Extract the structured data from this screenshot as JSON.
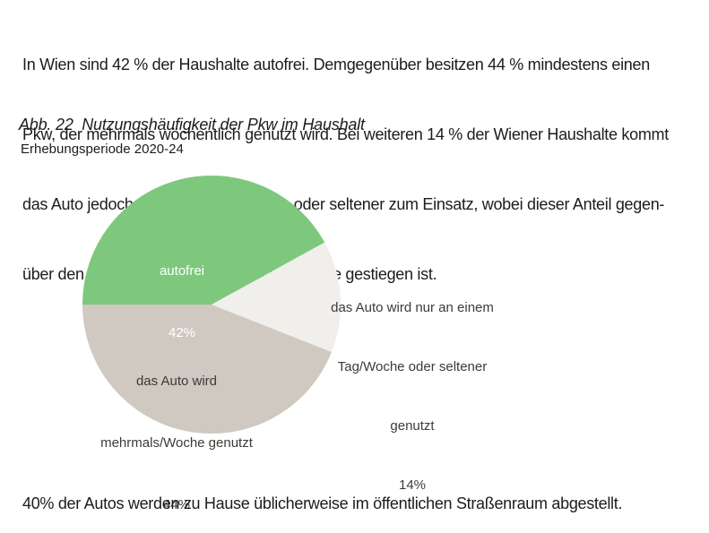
{
  "intro_paragraph": {
    "lines": [
      "In Wien sind 42 % der Haushalte autofrei. Demgegenüber besitzen 44 % mindestens einen",
      "Pkw, der mehrmals wöchentlich genutzt wird. Bei weiteren 14 % der Wiener Haushalte kommt",
      "das Auto jedoch nur einmal pro Woche oder seltener zum Einsatz, wobei dieser Anteil gegen-",
      "über den Jahren 2015-19 um 2 Prozentpunkte gestiegen ist."
    ]
  },
  "figure": {
    "caption": "Abb. 22  Nutzungshäufigkeit der Pkw im Haushalt",
    "subtitle": "Erhebungsperiode 2020-24"
  },
  "chart_data": {
    "type": "pie",
    "title": "Nutzungshäufigkeit der Pkw im Haushalt",
    "subtitle": "Erhebungsperiode 2020-24",
    "start_angle_deg": 180,
    "direction": "clockwise",
    "legend": "none",
    "slices": [
      {
        "label": "autofrei",
        "value_pct": 42,
        "color": "#7dc87d",
        "label_color": "#ffffff",
        "label_position": "inside",
        "label_lines": [
          "autofrei",
          "42%"
        ]
      },
      {
        "label": "das Auto wird nur an einem Tag/Woche oder seltener genutzt",
        "value_pct": 14,
        "color": "#f0efec",
        "label_color": "#3b3b39",
        "label_position": "outside-right",
        "label_lines": [
          "das Auto wird nur an einem",
          "Tag/Woche oder seltener",
          "genutzt",
          "14%"
        ]
      },
      {
        "label": "das Auto wird mehrmals/Woche genutzt",
        "value_pct": 44,
        "color": "#cfc9c2",
        "label_color": "#3b3b39",
        "label_position": "inside",
        "label_lines": [
          "das Auto wird",
          "mehrmals/Woche genutzt",
          "44%"
        ]
      }
    ]
  },
  "footer_text": "40% der Autos werden zu Hause üblicherweise im öffentlichen Straßenraum abgestellt."
}
